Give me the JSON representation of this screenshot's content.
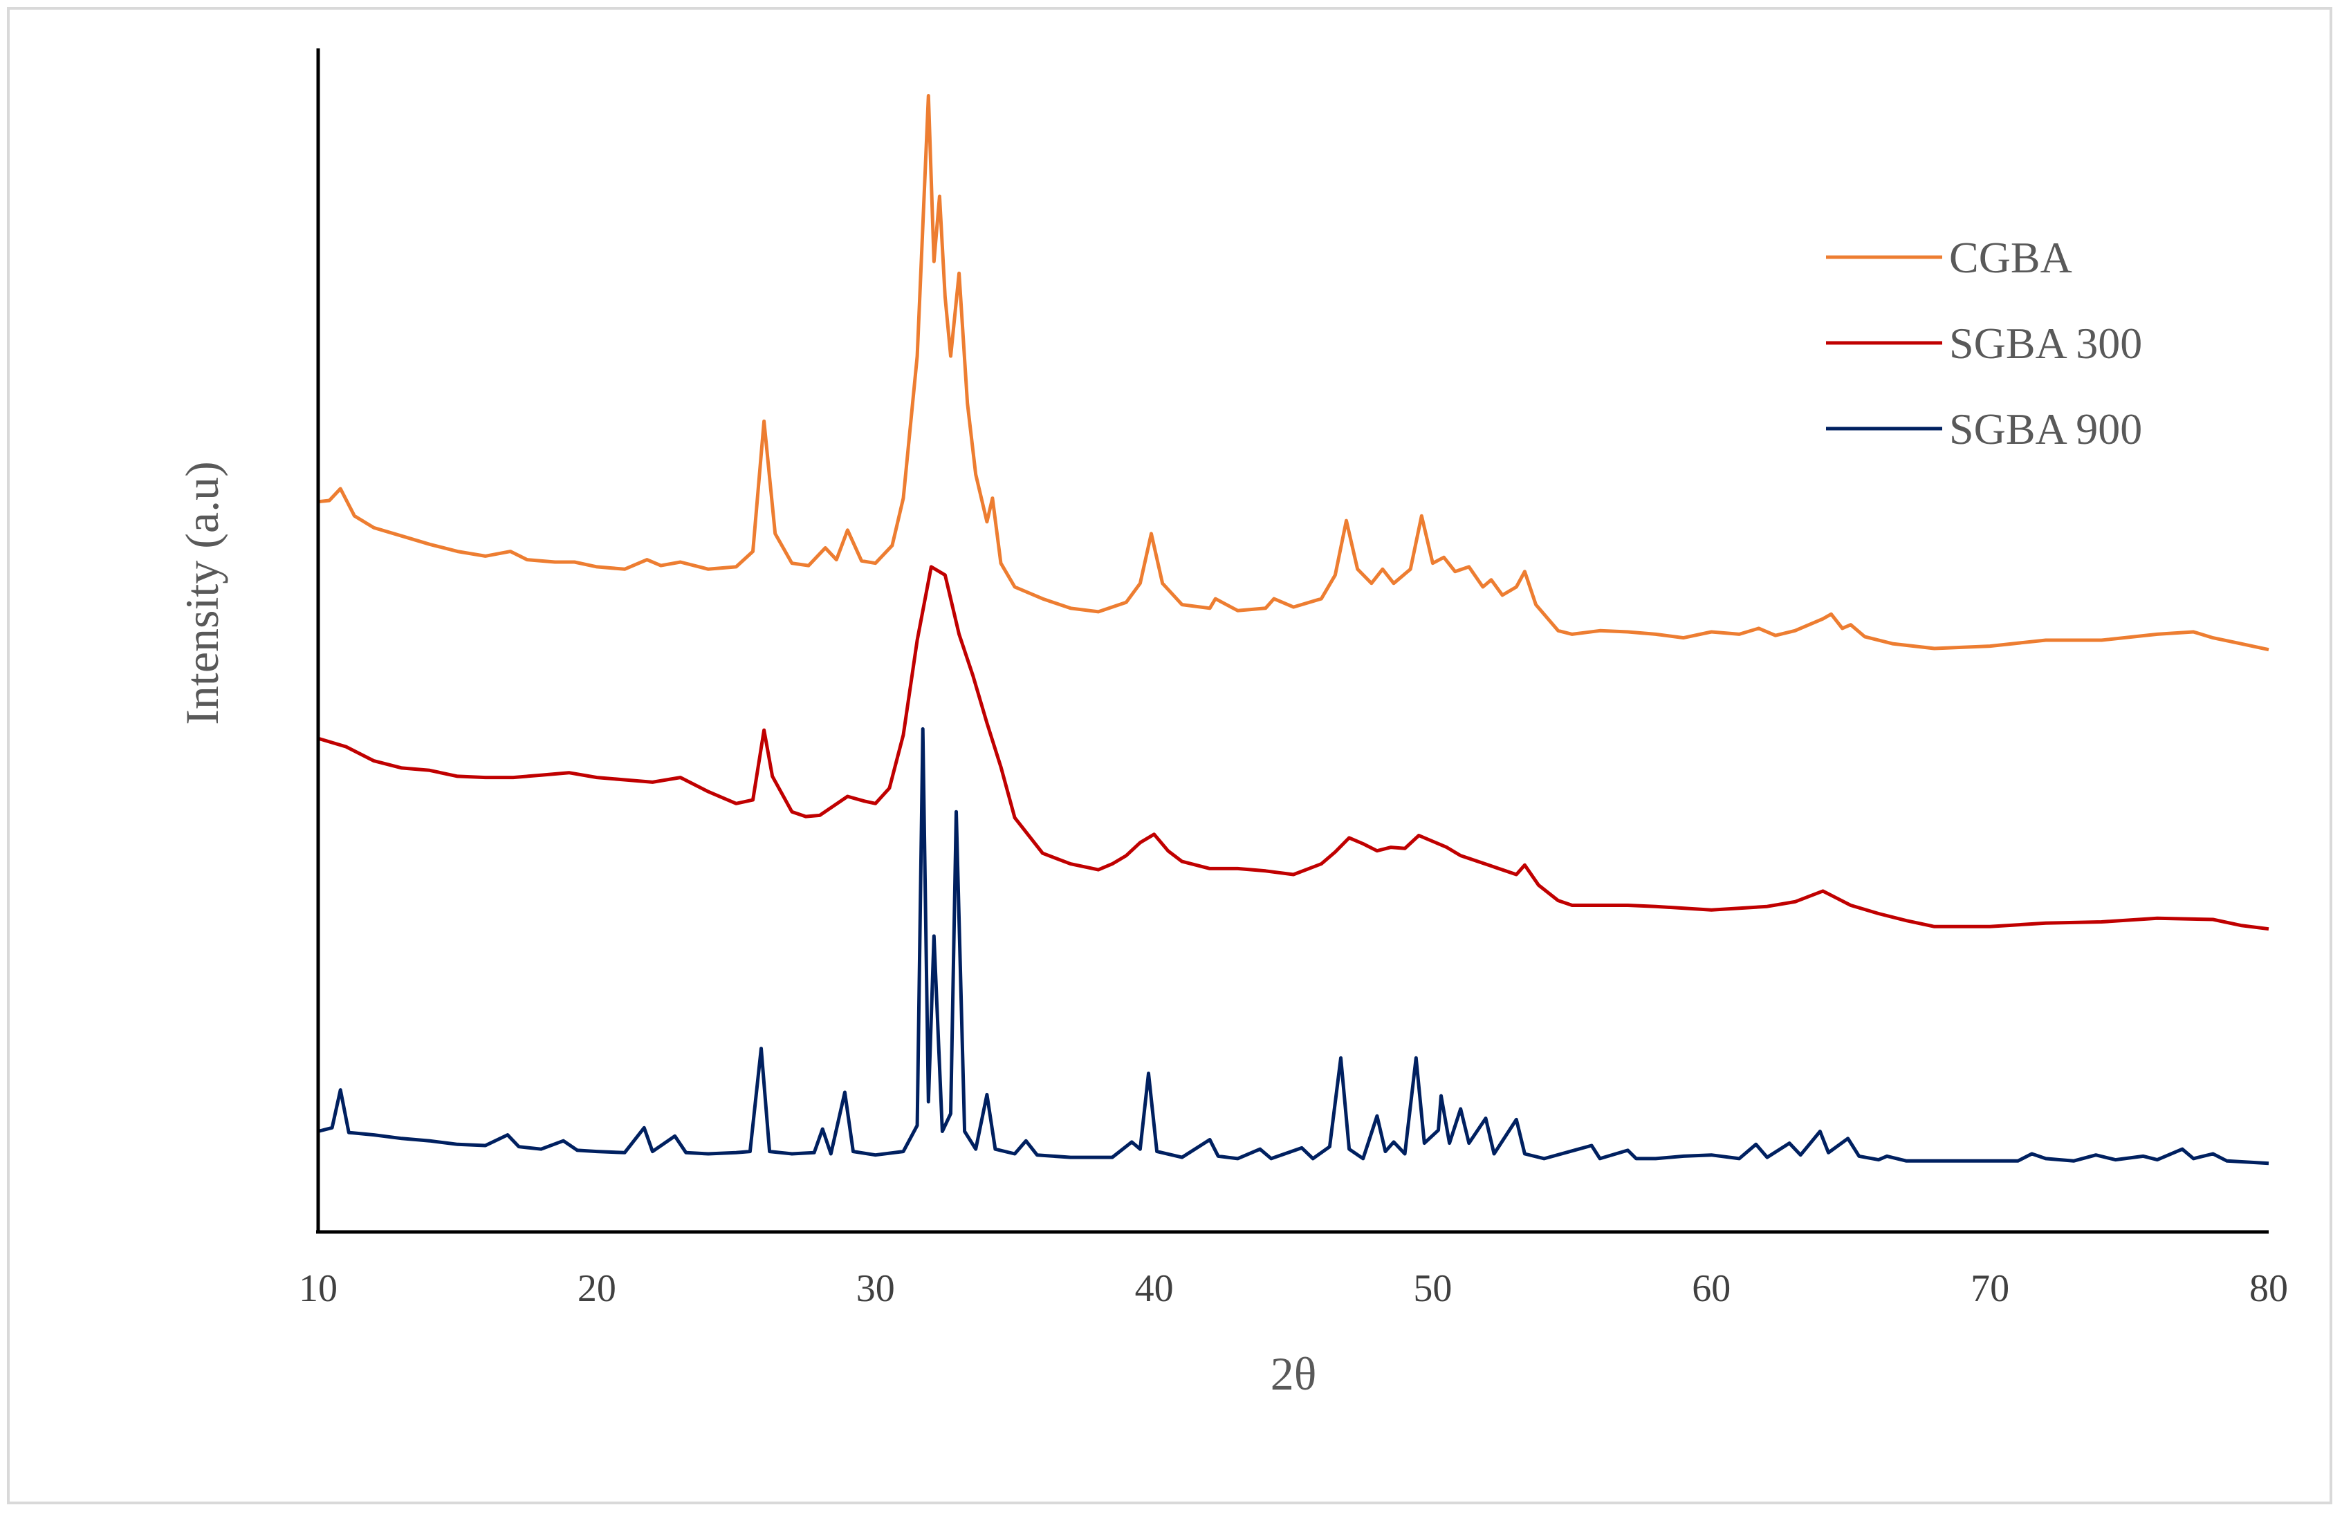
{
  "chart_data": {
    "type": "line",
    "xlabel": "2θ",
    "ylabel": "Intensity (a.u)",
    "xlim": [
      10,
      80
    ],
    "x_ticks": [
      10,
      20,
      30,
      40,
      50,
      60,
      70,
      80
    ],
    "ylim": [
      0,
      1.0
    ],
    "y_ticks_shown": false,
    "grid": false,
    "legend_position": "top-right",
    "series": [
      {
        "name": "CGBA",
        "color": "#ED7D31",
        "points": [
          [
            10,
            0.617
          ],
          [
            10.4,
            0.618
          ],
          [
            10.8,
            0.628
          ],
          [
            11.3,
            0.605
          ],
          [
            12,
            0.595
          ],
          [
            13,
            0.588
          ],
          [
            14,
            0.581
          ],
          [
            15,
            0.575
          ],
          [
            16,
            0.571
          ],
          [
            16.9,
            0.575
          ],
          [
            17.5,
            0.568
          ],
          [
            18.5,
            0.566
          ],
          [
            19.2,
            0.566
          ],
          [
            20,
            0.562
          ],
          [
            21,
            0.56
          ],
          [
            21.8,
            0.568
          ],
          [
            22.3,
            0.563
          ],
          [
            23,
            0.566
          ],
          [
            24,
            0.56
          ],
          [
            25,
            0.562
          ],
          [
            25.6,
            0.575
          ],
          [
            26,
            0.685
          ],
          [
            26.4,
            0.59
          ],
          [
            27,
            0.565
          ],
          [
            27.6,
            0.563
          ],
          [
            28.2,
            0.578
          ],
          [
            28.6,
            0.568
          ],
          [
            29,
            0.593
          ],
          [
            29.5,
            0.567
          ],
          [
            30,
            0.565
          ],
          [
            30.6,
            0.58
          ],
          [
            31,
            0.62
          ],
          [
            31.5,
            0.74
          ],
          [
            31.9,
            0.96
          ],
          [
            32.1,
            0.82
          ],
          [
            32.3,
            0.875
          ],
          [
            32.5,
            0.79
          ],
          [
            32.7,
            0.74
          ],
          [
            33,
            0.81
          ],
          [
            33.3,
            0.7
          ],
          [
            33.6,
            0.64
          ],
          [
            34,
            0.6
          ],
          [
            34.2,
            0.62
          ],
          [
            34.5,
            0.565
          ],
          [
            35,
            0.545
          ],
          [
            36,
            0.535
          ],
          [
            37,
            0.527
          ],
          [
            38,
            0.524
          ],
          [
            39,
            0.532
          ],
          [
            39.5,
            0.548
          ],
          [
            39.9,
            0.59
          ],
          [
            40.3,
            0.548
          ],
          [
            41,
            0.53
          ],
          [
            42,
            0.527
          ],
          [
            42.2,
            0.535
          ],
          [
            43,
            0.525
          ],
          [
            44,
            0.527
          ],
          [
            44.3,
            0.535
          ],
          [
            45,
            0.528
          ],
          [
            46,
            0.535
          ],
          [
            46.5,
            0.555
          ],
          [
            46.9,
            0.601
          ],
          [
            47.3,
            0.56
          ],
          [
            47.8,
            0.548
          ],
          [
            48.2,
            0.56
          ],
          [
            48.6,
            0.548
          ],
          [
            49.2,
            0.56
          ],
          [
            49.6,
            0.605
          ],
          [
            50,
            0.565
          ],
          [
            50.4,
            0.57
          ],
          [
            50.8,
            0.558
          ],
          [
            51.3,
            0.562
          ],
          [
            51.8,
            0.545
          ],
          [
            52.1,
            0.551
          ],
          [
            52.5,
            0.538
          ],
          [
            53,
            0.545
          ],
          [
            53.3,
            0.558
          ],
          [
            53.7,
            0.53
          ],
          [
            54.5,
            0.508
          ],
          [
            55,
            0.505
          ],
          [
            56,
            0.508
          ],
          [
            57,
            0.507
          ],
          [
            58,
            0.505
          ],
          [
            59,
            0.502
          ],
          [
            60,
            0.507
          ],
          [
            61,
            0.505
          ],
          [
            61.7,
            0.51
          ],
          [
            62.3,
            0.504
          ],
          [
            63,
            0.508
          ],
          [
            64,
            0.518
          ],
          [
            64.3,
            0.522
          ],
          [
            64.7,
            0.51
          ],
          [
            65,
            0.513
          ],
          [
            65.5,
            0.503
          ],
          [
            66.5,
            0.497
          ],
          [
            68,
            0.493
          ],
          [
            70,
            0.495
          ],
          [
            72,
            0.5
          ],
          [
            74,
            0.5
          ],
          [
            76,
            0.505
          ],
          [
            77.3,
            0.507
          ],
          [
            78,
            0.502
          ],
          [
            79,
            0.497
          ],
          [
            80,
            0.492
          ]
        ]
      },
      {
        "name": "SGBA 300",
        "color": "#C00000",
        "points": [
          [
            10,
            0.417
          ],
          [
            11,
            0.41
          ],
          [
            12,
            0.398
          ],
          [
            13,
            0.392
          ],
          [
            14,
            0.39
          ],
          [
            15,
            0.385
          ],
          [
            16,
            0.384
          ],
          [
            17,
            0.384
          ],
          [
            18,
            0.386
          ],
          [
            19,
            0.388
          ],
          [
            20,
            0.384
          ],
          [
            21,
            0.382
          ],
          [
            22,
            0.38
          ],
          [
            23,
            0.384
          ],
          [
            24,
            0.372
          ],
          [
            25,
            0.362
          ],
          [
            25.6,
            0.365
          ],
          [
            26,
            0.424
          ],
          [
            26.3,
            0.385
          ],
          [
            27,
            0.355
          ],
          [
            27.5,
            0.351
          ],
          [
            28,
            0.352
          ],
          [
            28.5,
            0.36
          ],
          [
            29,
            0.368
          ],
          [
            29.6,
            0.364
          ],
          [
            30,
            0.362
          ],
          [
            30.5,
            0.375
          ],
          [
            31,
            0.42
          ],
          [
            31.5,
            0.5
          ],
          [
            32,
            0.562
          ],
          [
            32.5,
            0.555
          ],
          [
            33,
            0.505
          ],
          [
            33.5,
            0.47
          ],
          [
            34,
            0.43
          ],
          [
            34.5,
            0.393
          ],
          [
            35,
            0.35
          ],
          [
            36,
            0.32
          ],
          [
            37,
            0.311
          ],
          [
            38,
            0.306
          ],
          [
            38.5,
            0.311
          ],
          [
            39,
            0.318
          ],
          [
            39.5,
            0.329
          ],
          [
            40,
            0.336
          ],
          [
            40.5,
            0.322
          ],
          [
            41,
            0.313
          ],
          [
            42,
            0.307
          ],
          [
            43,
            0.307
          ],
          [
            44,
            0.305
          ],
          [
            45,
            0.302
          ],
          [
            46,
            0.311
          ],
          [
            46.5,
            0.321
          ],
          [
            47,
            0.333
          ],
          [
            47.5,
            0.328
          ],
          [
            48,
            0.322
          ],
          [
            48.5,
            0.325
          ],
          [
            49,
            0.324
          ],
          [
            49.5,
            0.335
          ],
          [
            50,
            0.33
          ],
          [
            50.5,
            0.325
          ],
          [
            51,
            0.318
          ],
          [
            52,
            0.31
          ],
          [
            53,
            0.302
          ],
          [
            53.3,
            0.31
          ],
          [
            53.8,
            0.293
          ],
          [
            54.5,
            0.28
          ],
          [
            55,
            0.276
          ],
          [
            56,
            0.276
          ],
          [
            57,
            0.276
          ],
          [
            58,
            0.275
          ],
          [
            60,
            0.272
          ],
          [
            62,
            0.275
          ],
          [
            63,
            0.279
          ],
          [
            64,
            0.288
          ],
          [
            64.5,
            0.282
          ],
          [
            65,
            0.276
          ],
          [
            66,
            0.269
          ],
          [
            67,
            0.263
          ],
          [
            68,
            0.258
          ],
          [
            69,
            0.258
          ],
          [
            70,
            0.258
          ],
          [
            72,
            0.261
          ],
          [
            74,
            0.262
          ],
          [
            76,
            0.265
          ],
          [
            78,
            0.264
          ],
          [
            79,
            0.259
          ],
          [
            80,
            0.256
          ]
        ]
      },
      {
        "name": "SGBA 900",
        "color": "#002060",
        "points": [
          [
            10,
            0.085
          ],
          [
            10.5,
            0.088
          ],
          [
            10.8,
            0.12
          ],
          [
            11.1,
            0.084
          ],
          [
            12,
            0.082
          ],
          [
            13,
            0.079
          ],
          [
            14,
            0.077
          ],
          [
            15,
            0.074
          ],
          [
            16,
            0.073
          ],
          [
            16.8,
            0.082
          ],
          [
            17.2,
            0.072
          ],
          [
            18,
            0.07
          ],
          [
            18.8,
            0.077
          ],
          [
            19.3,
            0.069
          ],
          [
            20,
            0.068
          ],
          [
            21,
            0.067
          ],
          [
            21.7,
            0.088
          ],
          [
            22,
            0.068
          ],
          [
            22.8,
            0.081
          ],
          [
            23.2,
            0.067
          ],
          [
            24,
            0.066
          ],
          [
            25,
            0.067
          ],
          [
            25.5,
            0.068
          ],
          [
            25.9,
            0.155
          ],
          [
            26.2,
            0.068
          ],
          [
            27,
            0.066
          ],
          [
            27.8,
            0.067
          ],
          [
            28.1,
            0.087
          ],
          [
            28.4,
            0.066
          ],
          [
            28.9,
            0.118
          ],
          [
            29.2,
            0.068
          ],
          [
            30,
            0.065
          ],
          [
            31,
            0.068
          ],
          [
            31.5,
            0.09
          ],
          [
            31.7,
            0.425
          ],
          [
            31.9,
            0.11
          ],
          [
            32.1,
            0.25
          ],
          [
            32.4,
            0.085
          ],
          [
            32.7,
            0.1
          ],
          [
            32.9,
            0.355
          ],
          [
            33.2,
            0.085
          ],
          [
            33.6,
            0.07
          ],
          [
            34,
            0.116
          ],
          [
            34.3,
            0.07
          ],
          [
            35,
            0.066
          ],
          [
            35.4,
            0.077
          ],
          [
            35.8,
            0.065
          ],
          [
            37,
            0.063
          ],
          [
            38.5,
            0.063
          ],
          [
            39.2,
            0.076
          ],
          [
            39.5,
            0.07
          ],
          [
            39.8,
            0.134
          ],
          [
            40.1,
            0.068
          ],
          [
            41,
            0.063
          ],
          [
            42,
            0.078
          ],
          [
            42.3,
            0.064
          ],
          [
            43,
            0.062
          ],
          [
            43.8,
            0.07
          ],
          [
            44.2,
            0.062
          ],
          [
            45.3,
            0.071
          ],
          [
            45.7,
            0.062
          ],
          [
            46.3,
            0.072
          ],
          [
            46.7,
            0.147
          ],
          [
            47,
            0.07
          ],
          [
            47.5,
            0.062
          ],
          [
            48,
            0.098
          ],
          [
            48.3,
            0.068
          ],
          [
            48.6,
            0.076
          ],
          [
            49,
            0.066
          ],
          [
            49.4,
            0.147
          ],
          [
            49.7,
            0.075
          ],
          [
            50.2,
            0.086
          ],
          [
            50.3,
            0.115
          ],
          [
            50.6,
            0.075
          ],
          [
            51,
            0.104
          ],
          [
            51.3,
            0.075
          ],
          [
            51.9,
            0.096
          ],
          [
            52.2,
            0.066
          ],
          [
            53,
            0.095
          ],
          [
            53.3,
            0.066
          ],
          [
            54,
            0.062
          ],
          [
            55.7,
            0.073
          ],
          [
            56,
            0.062
          ],
          [
            57,
            0.069
          ],
          [
            57.3,
            0.062
          ],
          [
            58,
            0.062
          ],
          [
            59,
            0.064
          ],
          [
            60,
            0.065
          ],
          [
            61,
            0.062
          ],
          [
            61.6,
            0.074
          ],
          [
            62,
            0.063
          ],
          [
            62.8,
            0.075
          ],
          [
            63.2,
            0.065
          ],
          [
            63.9,
            0.085
          ],
          [
            64.2,
            0.067
          ],
          [
            64.9,
            0.079
          ],
          [
            65.3,
            0.064
          ],
          [
            66,
            0.061
          ],
          [
            66.3,
            0.064
          ],
          [
            67,
            0.06
          ],
          [
            69,
            0.06
          ],
          [
            71,
            0.06
          ],
          [
            71.5,
            0.066
          ],
          [
            72,
            0.062
          ],
          [
            73,
            0.06
          ],
          [
            73.8,
            0.065
          ],
          [
            74.5,
            0.061
          ],
          [
            75.5,
            0.064
          ],
          [
            76,
            0.061
          ],
          [
            76.9,
            0.07
          ],
          [
            77.3,
            0.062
          ],
          [
            78,
            0.066
          ],
          [
            78.5,
            0.06
          ],
          [
            80,
            0.058
          ]
        ]
      }
    ]
  }
}
